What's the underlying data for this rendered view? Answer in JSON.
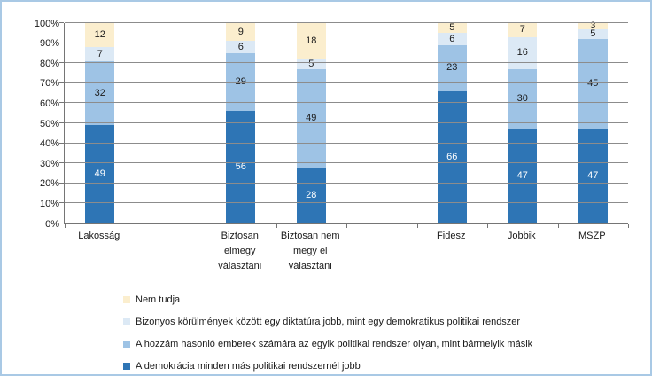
{
  "chart_data": {
    "type": "bar",
    "subtype": "stacked-100-percent",
    "title": "",
    "xlabel": "",
    "ylabel": "",
    "grid": true,
    "legend_position": "bottom-left",
    "y_axis": {
      "min": 0,
      "max": 100,
      "step": 10,
      "suffix": "%"
    },
    "slot_count": 8,
    "slot_of_category": [
      0,
      2,
      3,
      5,
      6,
      7
    ],
    "categories": [
      "Lakosság",
      "Biztosan elmegy választani",
      "Biztosan nem megy el választani",
      "Fidesz",
      "Jobbik",
      "MSZP"
    ],
    "category_label_lines": [
      [
        "Lakosság"
      ],
      [
        "Biztosan",
        "elmegy",
        "választani"
      ],
      [
        "Biztosan nem",
        "megy el",
        "választani"
      ],
      [
        "Fidesz"
      ],
      [
        "Jobbik"
      ],
      [
        "MSZP"
      ]
    ],
    "series": [
      {
        "name": "A demokrácia minden más politikai rendszernél jobb",
        "color": "#2e75b5",
        "label_color": "#ffffff",
        "values": [
          49,
          56,
          28,
          66,
          47,
          47
        ]
      },
      {
        "name": "A hozzám hasonló emberek számára az egyik politikai rendszer olyan, mint bármelyik másik",
        "color": "#9ec3e5",
        "label_color": "#1a1a1a",
        "values": [
          32,
          29,
          49,
          23,
          30,
          45
        ]
      },
      {
        "name": "Bizonyos körülmények között egy diktatúra jobb, mint egy demokratikus politikai rendszer",
        "color": "#dce9f5",
        "label_color": "#1a1a1a",
        "values": [
          7,
          6,
          5,
          6,
          16,
          5
        ]
      },
      {
        "name": "Nem tudja",
        "color": "#fbeece",
        "label_color": "#1a1a1a",
        "values": [
          12,
          9,
          18,
          5,
          7,
          3
        ]
      }
    ],
    "legend": [
      {
        "label": "Nem tudja",
        "color": "#fbeece"
      },
      {
        "label": "Bizonyos körülmények között egy diktatúra jobb, mint egy demokratikus politikai rendszer",
        "color": "#dce9f5"
      },
      {
        "label": "A hozzám hasonló emberek számára az egyik politikai rendszer olyan, mint bármelyik másik",
        "color": "#9ec3e5"
      },
      {
        "label": "A demokrácia minden más politikai rendszernél jobb",
        "color": "#2e75b5"
      }
    ]
  },
  "style": {
    "frame_border_color": "#a9c9e5",
    "gridline_color": "#8c8c8c",
    "axis_color": "#757575",
    "text_color": "#1a1a1a",
    "background_color": "#ffffff"
  }
}
